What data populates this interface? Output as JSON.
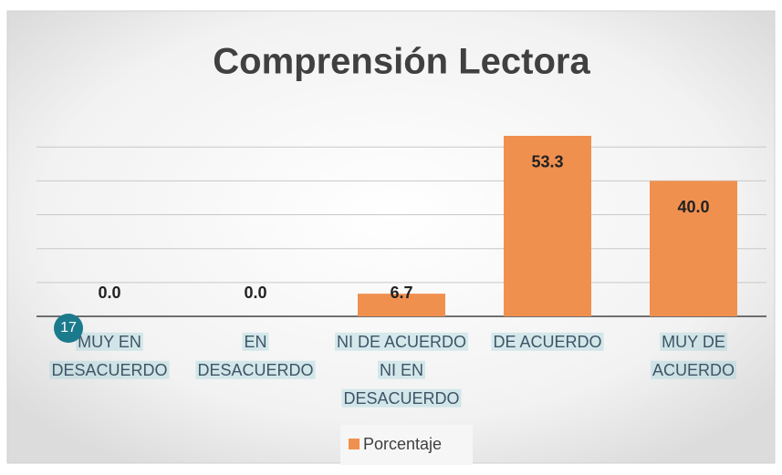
{
  "slide_number": "17",
  "chart_data": {
    "type": "bar",
    "title": "Comprensión Lectora",
    "categories": [
      [
        "MUY EN",
        "DESACUERDO"
      ],
      [
        "EN",
        "DESACUERDO"
      ],
      [
        "NI DE ACUERDO",
        "NI EN",
        "DESACUERDO"
      ],
      [
        "DE ACUERDO"
      ],
      [
        "MUY DE",
        "ACUERDO"
      ]
    ],
    "series": [
      {
        "name": "Porcentaje",
        "color": "#f0904f",
        "values": [
          0,
          0,
          6.7,
          53.3,
          40
        ],
        "value_labels": [
          "0.0",
          "0.0",
          "6.7",
          "53.3",
          "40.0"
        ]
      }
    ],
    "ylim": [
      0,
      60
    ],
    "yticks": [
      0,
      10,
      20,
      30,
      40,
      50
    ],
    "grid": true,
    "legend": "bottom"
  }
}
